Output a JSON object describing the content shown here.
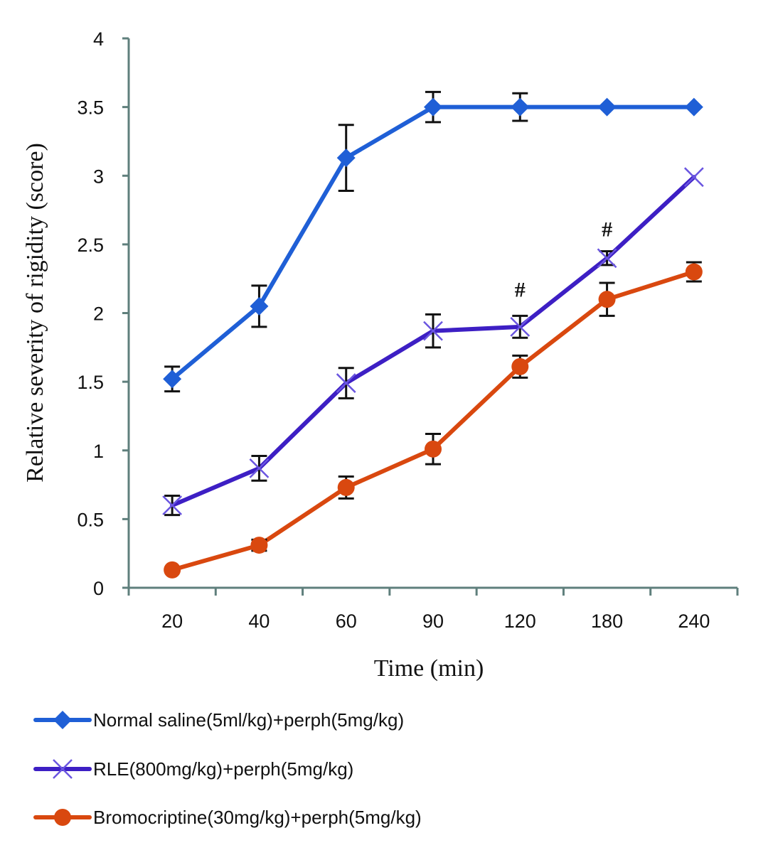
{
  "chart_data": {
    "type": "line",
    "title": "",
    "xlabel": "Time (min)",
    "ylabel": "Relative severity of rigidity (score)",
    "categories": [
      "20",
      "40",
      "60",
      "90",
      "120",
      "180",
      "240"
    ],
    "ylim": [
      0,
      4
    ],
    "yticks": [
      "0",
      "0.5",
      "1",
      "1.5",
      "2",
      "2.5",
      "3",
      "3.5",
      "4"
    ],
    "ytick_values": [
      0,
      0.5,
      1,
      1.5,
      2,
      2.5,
      3,
      3.5,
      4
    ],
    "grid": false,
    "legend_position": "bottom",
    "series": [
      {
        "name": "Normal saline(5ml/kg)+perph(5mg/kg)",
        "color": "#1f5fd6",
        "marker": "diamond",
        "values": [
          1.52,
          2.05,
          3.13,
          3.5,
          3.5,
          3.5,
          3.5
        ],
        "errors": [
          0.09,
          0.15,
          0.24,
          0.11,
          0.1,
          null,
          null
        ]
      },
      {
        "name": "RLE(800mg/kg)+perph(5mg/kg)",
        "color": "#3d1fc4",
        "marker": "x",
        "values": [
          0.6,
          0.87,
          1.49,
          1.87,
          1.9,
          2.4,
          2.99
        ],
        "errors": [
          0.07,
          0.09,
          0.11,
          0.12,
          0.08,
          0.05,
          null
        ]
      },
      {
        "name": "Bromocriptine(30mg/kg)+perph(5mg/kg)",
        "color": "#d9480f",
        "marker": "circle",
        "values": [
          0.13,
          0.31,
          0.73,
          1.01,
          1.61,
          2.1,
          2.3
        ],
        "errors": [
          null,
          0.04,
          0.08,
          0.11,
          0.08,
          0.12,
          0.07
        ]
      }
    ],
    "annotations": [
      {
        "text": "#",
        "category": "120",
        "y": 2.17
      },
      {
        "text": "#",
        "category": "180",
        "y": 2.61
      }
    ]
  }
}
